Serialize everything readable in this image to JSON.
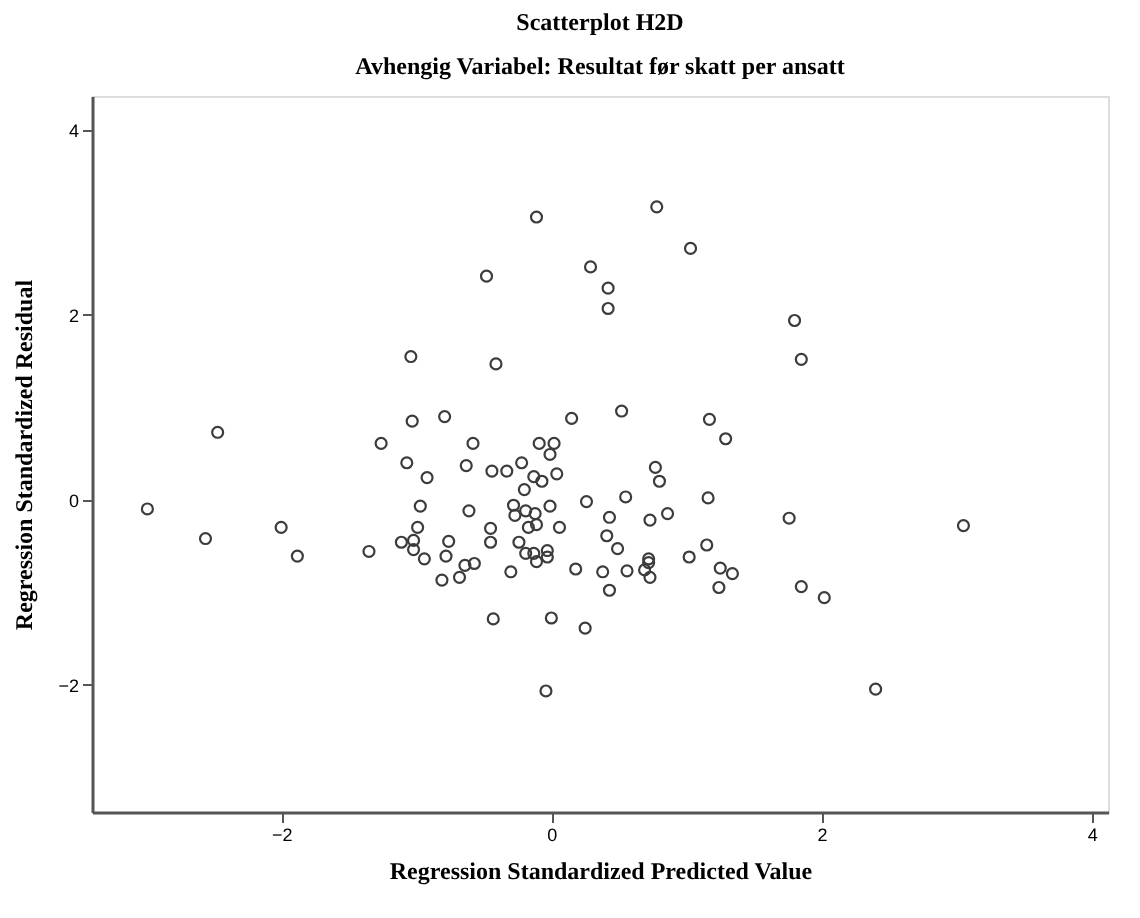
{
  "chart_data": {
    "type": "scatter",
    "title": "Scatterplot H2D",
    "subtitle": "Avhengig Variabel: Resultat før skatt per ansatt",
    "xlabel": "Regression Standardized Predicted Value",
    "ylabel": "Regression Standardized Residual",
    "x": [
      -0.11,
      -0.48,
      0.29,
      -1.04,
      -0.41,
      -2.47,
      -1.26,
      -1.03,
      -0.79,
      0.15,
      0.78,
      1.03,
      0.42,
      0.42,
      1.8,
      1.85,
      0.52,
      1.17,
      1.29,
      -2.99,
      -2.56,
      -2.0,
      -1.88,
      -1.35,
      -0.58,
      -1.07,
      -0.92,
      -0.63,
      -0.44,
      -0.33,
      -0.22,
      -0.09,
      0.02,
      -0.01,
      -0.13,
      -0.07,
      0.04,
      -0.2,
      0.26,
      -0.97,
      -0.61,
      -0.28,
      -0.19,
      -0.12,
      -0.01,
      -0.27,
      -0.17,
      -0.11,
      0.06,
      -0.99,
      -0.45,
      -0.45,
      -1.11,
      -1.02,
      -1.02,
      -0.94,
      -0.76,
      -0.78,
      -0.64,
      -0.57,
      -0.81,
      -0.68,
      -0.24,
      -0.19,
      -0.13,
      -0.03,
      -0.03,
      -0.11,
      -0.3,
      0.18,
      -0.43,
      0.0,
      0.25,
      -0.04,
      0.77,
      0.8,
      0.55,
      1.16,
      0.43,
      0.73,
      0.86,
      1.76,
      3.05,
      0.41,
      0.49,
      0.72,
      0.72,
      1.15,
      1.02,
      0.38,
      0.56,
      0.69,
      0.73,
      0.43,
      1.25,
      1.34,
      1.24,
      1.85,
      2.02,
      2.4
    ],
    "values": [
      3.06,
      2.42,
      2.52,
      1.55,
      1.47,
      0.73,
      0.61,
      0.85,
      0.9,
      0.88,
      3.17,
      2.72,
      2.29,
      2.07,
      1.94,
      1.52,
      0.96,
      0.87,
      0.66,
      -0.1,
      -0.42,
      -0.3,
      -0.61,
      -0.56,
      0.61,
      0.4,
      0.24,
      0.37,
      0.31,
      0.31,
      0.4,
      0.61,
      0.61,
      0.49,
      0.25,
      0.2,
      0.28,
      0.11,
      -0.02,
      -0.07,
      -0.12,
      -0.06,
      -0.12,
      -0.15,
      -0.07,
      -0.17,
      -0.3,
      -0.27,
      -0.3,
      -0.3,
      -0.31,
      -0.46,
      -0.46,
      -0.44,
      -0.54,
      -0.64,
      -0.45,
      -0.61,
      -0.71,
      -0.69,
      -0.87,
      -0.84,
      -0.46,
      -0.58,
      -0.58,
      -0.55,
      -0.62,
      -0.67,
      -0.78,
      -0.75,
      -1.29,
      -1.28,
      -1.39,
      -2.07,
      0.35,
      0.2,
      0.03,
      0.02,
      -0.19,
      -0.22,
      -0.15,
      -0.2,
      -0.28,
      -0.39,
      -0.53,
      -0.64,
      -0.68,
      -0.49,
      -0.62,
      -0.78,
      -0.77,
      -0.76,
      -0.84,
      -0.98,
      -0.74,
      -0.8,
      -0.95,
      -0.94,
      -1.06,
      -2.05
    ],
    "color": "#3c3c3c",
    "marker": "circle",
    "xlim": [
      -3.4,
      4.12
    ],
    "ylim": [
      -3.38,
      4.37
    ],
    "xticks": [
      -2,
      0,
      2,
      4
    ],
    "yticks": [
      -2,
      0,
      2,
      4
    ],
    "grid": false
  }
}
